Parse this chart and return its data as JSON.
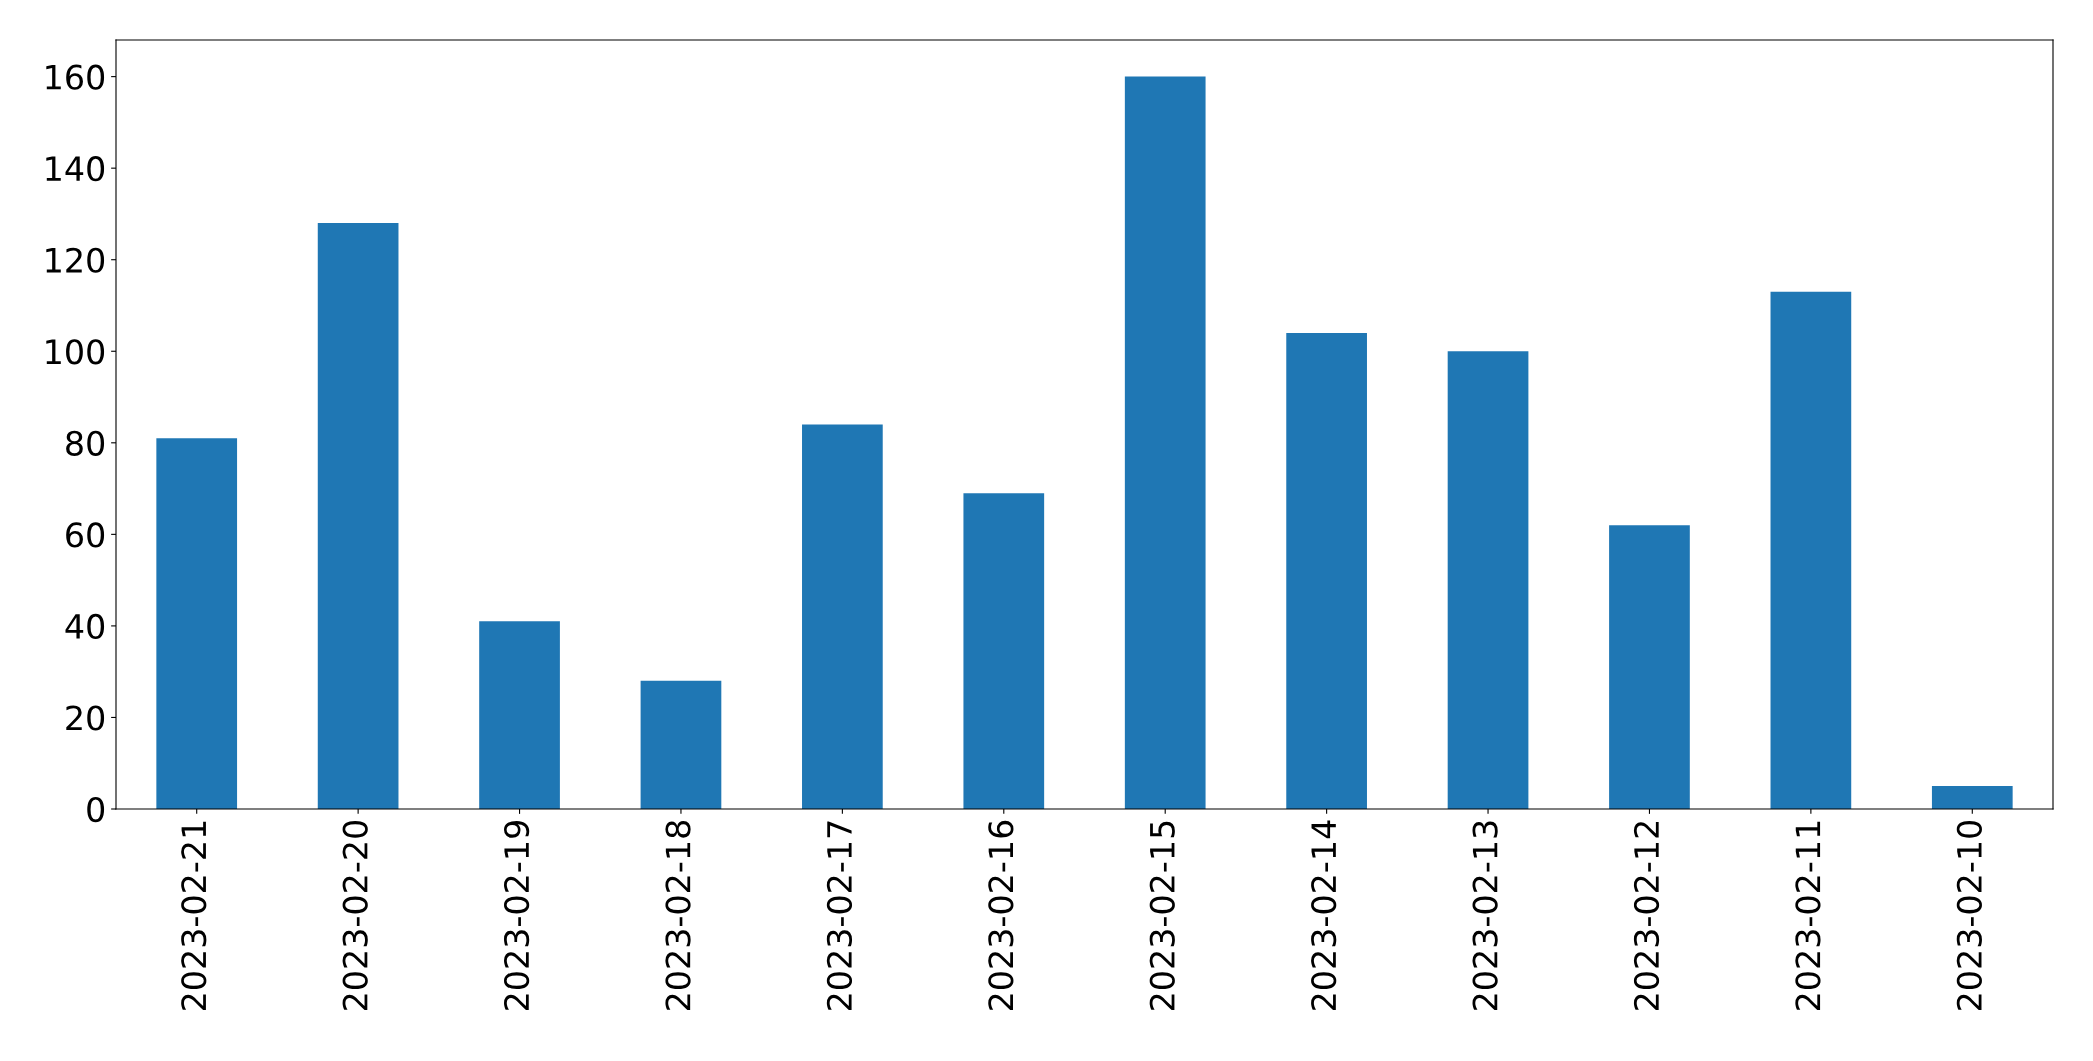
{
  "chart_data": {
    "type": "bar",
    "categories": [
      "2023-02-21",
      "2023-02-20",
      "2023-02-19",
      "2023-02-18",
      "2023-02-17",
      "2023-02-16",
      "2023-02-15",
      "2023-02-14",
      "2023-02-13",
      "2023-02-12",
      "2023-02-11",
      "2023-02-10"
    ],
    "values": [
      81,
      128,
      41,
      28,
      84,
      69,
      160,
      104,
      100,
      62,
      113,
      5
    ],
    "color": "#1f77b4",
    "ylim": [
      0,
      168
    ],
    "yticks": [
      0,
      20,
      40,
      60,
      80,
      100,
      120,
      140,
      160
    ],
    "grid": false,
    "legend": false
  }
}
